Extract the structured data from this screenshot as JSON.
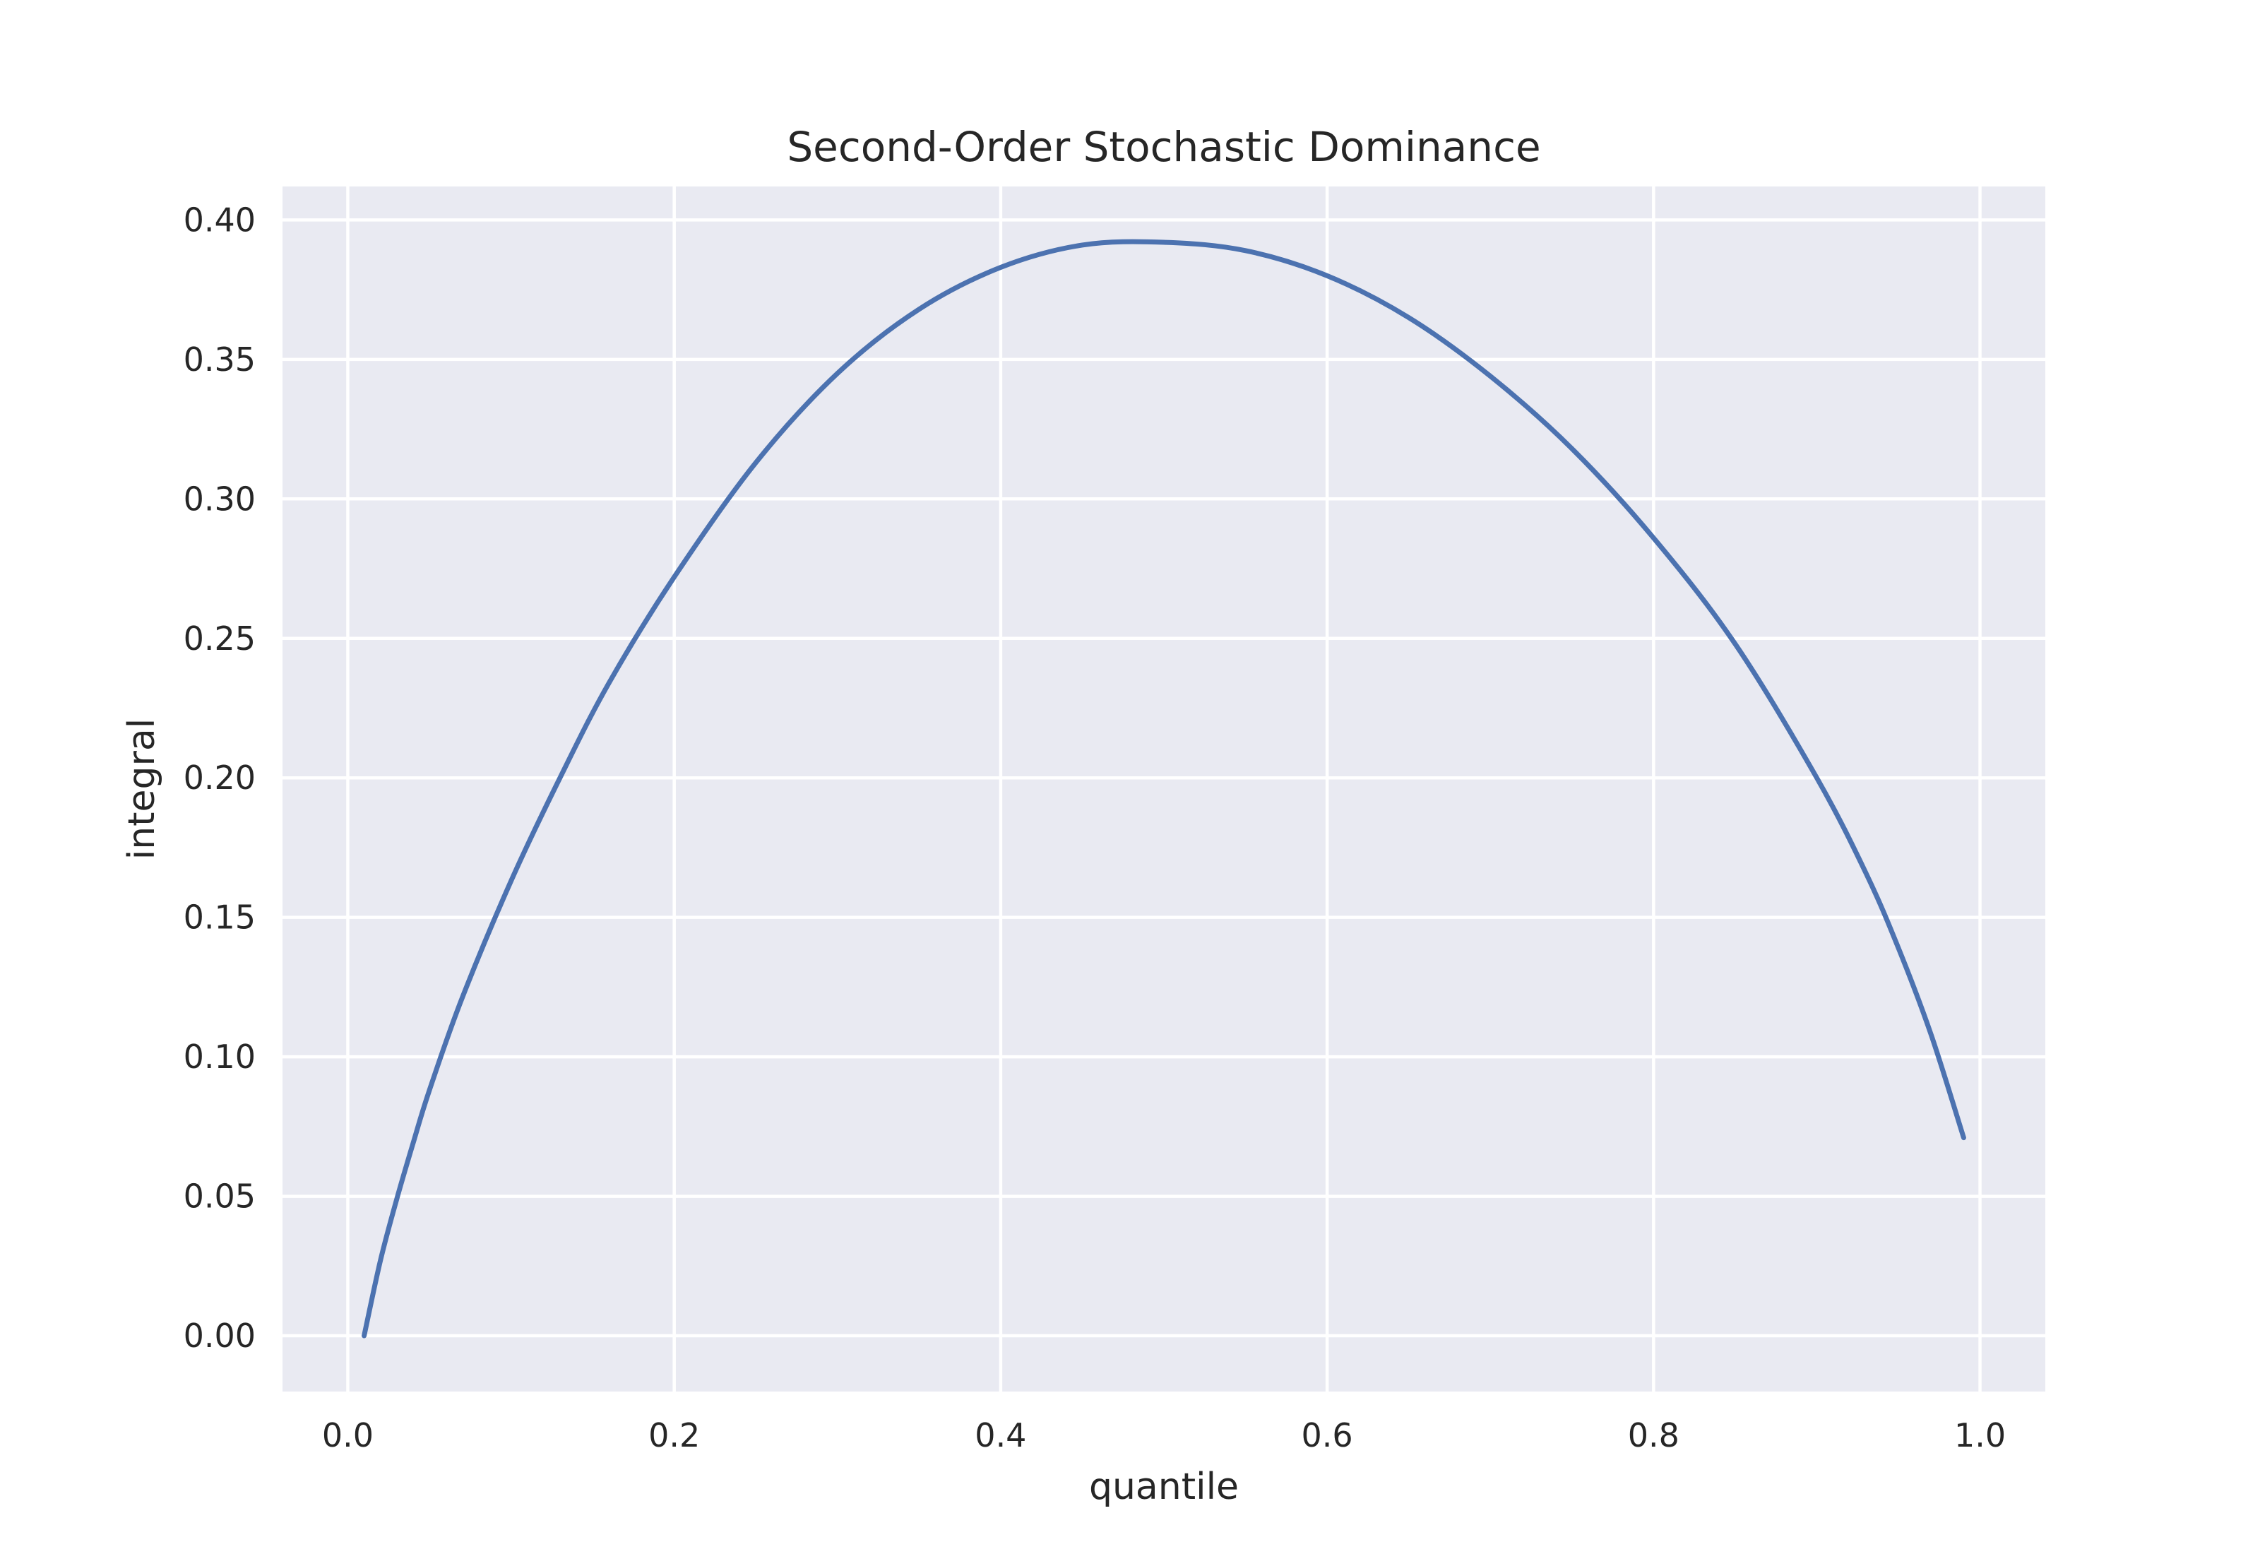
{
  "chart_data": {
    "type": "line",
    "title": "Second-Order Stochastic Dominance",
    "xlabel": "quantile",
    "ylabel": "integral",
    "xlim": [
      -0.04,
      1.04
    ],
    "ylim": [
      -0.02,
      0.412
    ],
    "xticks": [
      0.0,
      0.2,
      0.4,
      0.6,
      0.8,
      1.0
    ],
    "xtick_labels": [
      "0.0",
      "0.2",
      "0.4",
      "0.6",
      "0.8",
      "1.0"
    ],
    "yticks": [
      0.0,
      0.05,
      0.1,
      0.15,
      0.2,
      0.25,
      0.3,
      0.35,
      0.4
    ],
    "ytick_labels": [
      "0.00",
      "0.05",
      "0.10",
      "0.15",
      "0.20",
      "0.25",
      "0.30",
      "0.35",
      "0.40"
    ],
    "grid": true,
    "legend": "none",
    "colors": {
      "background": "#e9eaf2",
      "grid": "#ffffff",
      "line": "#4c72b0",
      "text": "#262626"
    },
    "series": [
      {
        "x": [
          0.01,
          0.02,
          0.03,
          0.04,
          0.05,
          0.07,
          0.1,
          0.13,
          0.16,
          0.2,
          0.25,
          0.3,
          0.35,
          0.4,
          0.45,
          0.5,
          0.55,
          0.6,
          0.65,
          0.7,
          0.75,
          0.8,
          0.85,
          0.9,
          0.93,
          0.95,
          0.97,
          0.99
        ],
        "y": [
          0.0,
          0.027,
          0.049,
          0.069,
          0.088,
          0.121,
          0.163,
          0.2,
          0.234,
          0.272,
          0.313,
          0.345,
          0.368,
          0.383,
          0.391,
          0.392,
          0.389,
          0.38,
          0.365,
          0.344,
          0.318,
          0.286,
          0.248,
          0.2,
          0.166,
          0.139,
          0.108,
          0.071
        ]
      }
    ]
  }
}
